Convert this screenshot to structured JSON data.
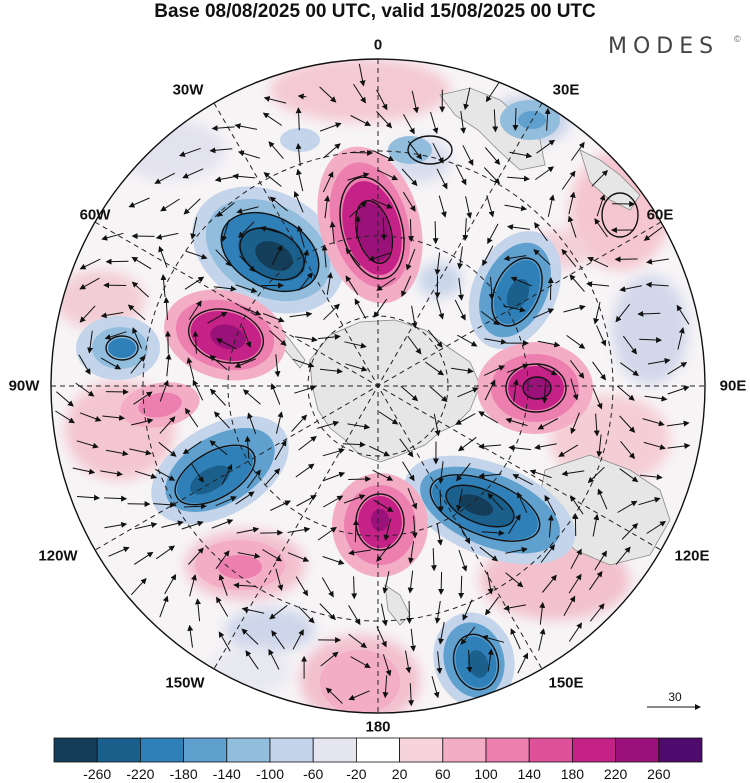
{
  "title": "Base 08/08/2025 00 UTC, valid 15/08/2025 00 UTC",
  "brand": {
    "name": "MODES",
    "mark": "©"
  },
  "longitude_labels": {
    "lon_0": "0",
    "lon_30e": "30E",
    "lon_60e": "60E",
    "lon_90e": "90E",
    "lon_120e": "120E",
    "lon_150e": "150E",
    "lon_180": "180",
    "lon_150w": "150W",
    "lon_120w": "120W",
    "lon_90w": "90W",
    "lon_60w": "60W",
    "lon_30w": "30W"
  },
  "vector_reference": {
    "value": "30"
  },
  "colorbar": {
    "colors": [
      "#143d59",
      "#1b5f8c",
      "#2f80b8",
      "#5fa0cf",
      "#93bddd",
      "#c4d4ea",
      "#e6e6f0",
      "#ffffff",
      "#f7d3dc",
      "#f3aec6",
      "#ec7fb0",
      "#e0519c",
      "#c52287",
      "#9a1279",
      "#4f0a6e"
    ],
    "labels": [
      "-260",
      "-220",
      "-180",
      "-140",
      "-100",
      "-60",
      "-20",
      "20",
      "60",
      "100",
      "140",
      "180",
      "220",
      "260"
    ]
  },
  "anomaly_centers": [
    {
      "sign": "negative",
      "region": "south atlantic 30W"
    },
    {
      "sign": "positive",
      "region": "prime meridian"
    },
    {
      "sign": "negative",
      "region": "southern indian ocean 45E"
    },
    {
      "sign": "positive",
      "region": "90E"
    },
    {
      "sign": "negative",
      "region": "150E"
    },
    {
      "sign": "positive",
      "region": "180"
    },
    {
      "sign": "negative",
      "region": "120W"
    },
    {
      "sign": "positive",
      "region": "75W"
    },
    {
      "sign": "negative",
      "region": "95W"
    }
  ]
}
